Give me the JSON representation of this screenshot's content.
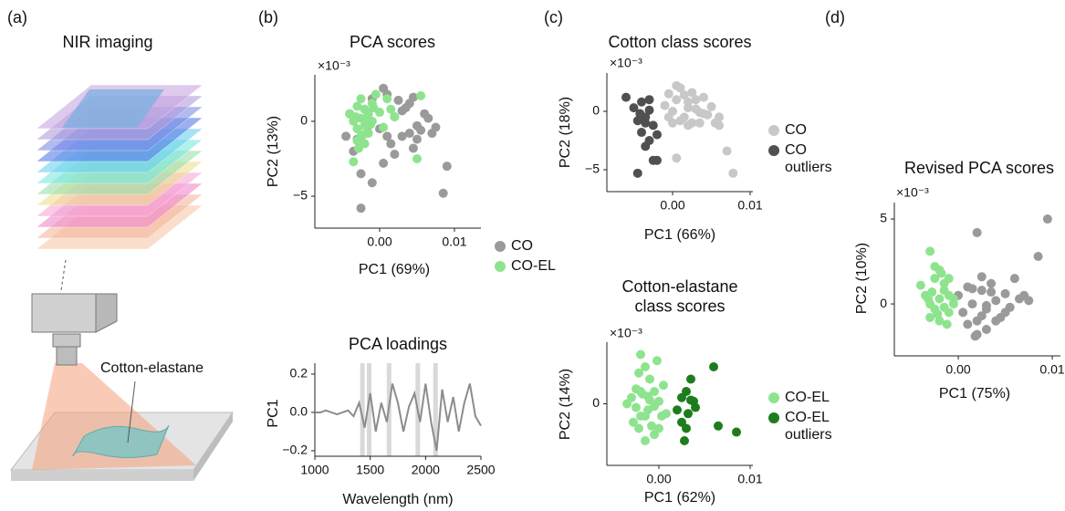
{
  "panel_labels": [
    "(a)",
    "(b)",
    "(c)",
    "(d)"
  ],
  "illustration": {
    "title": "NIR imaging",
    "label": "Cotton-elastane"
  },
  "chart_data": [
    {
      "type": "scatter",
      "title": "PCA scores",
      "y_multiplier": "×10⁻³",
      "x_label": "PC1 (69%)",
      "y_label": "PC2 (13%)",
      "xlim": [
        -0.00866,
        0.01354
      ],
      "xticks": [
        {
          "value": 0,
          "label": "0.00"
        },
        0.01
      ],
      "ylim": [
        -7.13,
        3.1
      ],
      "yticks": [
        {
          "value": -5,
          "label": "−5"
        },
        0
      ],
      "series": [
        {
          "name": "CO",
          "color": "#9a9a9a",
          "x": [
            -0.004,
            -0.003,
            -0.002,
            -0.001,
            0,
            0.001,
            0.002,
            0.003,
            0.004,
            0.005,
            0.006,
            0.007,
            -0.0035,
            -0.0025,
            0.0005,
            0.0015,
            0.0025,
            0.0035,
            0.0045,
            0.0055,
            0.0065,
            0.0005,
            -0.0015,
            0.001,
            0.003,
            0.005,
            0.0075,
            0.009,
            -0.0025,
            -0.001,
            0.002,
            0.004,
            -0.0045,
            0.0045,
            0.0085
          ],
          "values": [
            0.5,
            -1.2,
            0.8,
            1.5,
            -0.5,
            1.8,
            0.3,
            -1,
            1.2,
            -0.3,
            0.5,
            -0.8,
            -2,
            -3.5,
            -2.8,
            -1.5,
            1.4,
            0.9,
            -1.8,
            -0.6,
            0.2,
            2.2,
            -0.3,
            -1,
            0.7,
            -1.2,
            -0.4,
            -3,
            -5.8,
            -4.1,
            -2.2,
            -0.8,
            -1,
            1.6,
            -4.8
          ]
        },
        {
          "name": "CO-EL",
          "color": "#8ee48e",
          "x": [
            -0.004,
            -0.0035,
            -0.003,
            -0.003,
            -0.0025,
            -0.0025,
            -0.002,
            -0.002,
            -0.002,
            -0.0015,
            -0.0015,
            -0.001,
            -0.001,
            -0.0005,
            0,
            0.0005,
            0.001,
            -0.0035,
            -0.0028,
            -0.0022,
            -0.0018,
            -0.0012,
            -0.003,
            -0.0025,
            0.0015,
            0.002,
            0.005,
            0.0055,
            -0.0032,
            -0.0008
          ],
          "values": [
            0.5,
            0,
            -0.5,
            1,
            -1,
            0.2,
            0.8,
            -0.3,
            -1.5,
            0.5,
            -0.8,
            1.2,
            0,
            1.8,
            0.6,
            -0.4,
            1.5,
            -2.7,
            -1.8,
            -0.9,
            0.1,
            -0.2,
            -1.3,
            1.5,
            0.8,
            0.3,
            -2.5,
            1.7,
            0.3,
            0.9
          ]
        }
      ]
    },
    {
      "type": "line",
      "title": "PCA loadings",
      "x_label": "Wavelength (nm)",
      "y_label": "PC1",
      "xlim": [
        1000,
        2500
      ],
      "xticks": [
        1000,
        1500,
        2000,
        2500
      ],
      "ylim": [
        -0.229,
        0.257
      ],
      "yticks": [
        {
          "value": -0.2,
          "label": "−0.2"
        },
        {
          "value": 0,
          "label": "0.0"
        },
        0.2
      ],
      "highlights": [
        1430,
        1490,
        1670,
        1930,
        2090
      ],
      "x": [
        1000,
        1050,
        1100,
        1150,
        1200,
        1250,
        1300,
        1350,
        1400,
        1450,
        1500,
        1550,
        1600,
        1650,
        1700,
        1750,
        1800,
        1850,
        1900,
        1950,
        2000,
        2050,
        2100,
        2150,
        2200,
        2250,
        2300,
        2350,
        2400,
        2450,
        2500
      ],
      "series": [
        {
          "color": "#8c8c8c",
          "values": [
            0,
            0,
            0.01,
            0,
            -0.01,
            0,
            0.01,
            -0.02,
            0.05,
            -0.08,
            0.1,
            -0.1,
            0.05,
            -0.05,
            0.15,
            0.05,
            -0.1,
            0.03,
            0.1,
            -0.05,
            0.15,
            -0.05,
            -0.2,
            0.12,
            -0.05,
            0.08,
            -0.1,
            0.05,
            0.15,
            -0.02,
            -0.07
          ]
        }
      ]
    },
    {
      "type": "scatter",
      "title": "Cotton class scores",
      "y_multiplier": "×10⁻³",
      "x_label": "PC1 (66%)",
      "y_label": "PC2 (18%)",
      "xlim": [
        -0.00847,
        0.01035
      ],
      "xticks": [
        {
          "value": 0,
          "label": "0.00"
        },
        0.01
      ],
      "ylim": [
        -6.875,
        3.28
      ],
      "yticks": [
        {
          "value": -5,
          "label": "−5"
        },
        0
      ],
      "series": [
        {
          "name": "CO",
          "color": "#c8c8c8",
          "x": [
            -0.001,
            -0.0005,
            0,
            0.0005,
            0.001,
            0.0015,
            0.002,
            0.0025,
            0.003,
            0.0035,
            0.004,
            0.0045,
            0.005,
            0.0055,
            0.006,
            0,
            0.001,
            0.002,
            0.003,
            -0.0005,
            0.0015,
            0.0025,
            0.0005,
            0.004,
            0.006,
            0.007,
            0.0078,
            0.0005,
            0.0035,
            0.002
          ],
          "values": [
            0.5,
            1.5,
            0,
            1,
            2,
            -0.5,
            0.8,
            1.6,
            0.2,
            -1,
            1.2,
            -0.3,
            0.4,
            -1,
            -0.5,
            -1,
            -0.8,
            0.3,
            1,
            -0.5,
            1.4,
            -1,
            2.2,
            -0.2,
            -1.2,
            -3.4,
            -5.3,
            -4,
            -0.1,
            -1.2
          ]
        },
        {
          "name": "CO outliers",
          "color": "#505050",
          "x": [
            -0.006,
            -0.005,
            -0.0045,
            -0.004,
            -0.0035,
            -0.003,
            -0.0025,
            -0.002,
            -0.004,
            -0.0035,
            -0.003,
            -0.0045,
            -0.0025,
            -0.002,
            -0.003,
            -0.0035,
            -0.0042
          ],
          "values": [
            1.2,
            0.3,
            -0.8,
            0.8,
            -0.5,
            0.1,
            -1.2,
            -2,
            -1.8,
            -3,
            -2.5,
            -5.3,
            -4.2,
            -4.2,
            1,
            -1,
            -0.2
          ]
        }
      ]
    },
    {
      "type": "scatter",
      "title": "Cotton-elastane class scores",
      "y_multiplier": "×10⁻³",
      "x_label": "PC1 (62%)",
      "y_label": "PC2 (14%)",
      "xlim": [
        -0.0057,
        0.0103
      ],
      "xticks": [
        {
          "value": 0,
          "label": "0.00"
        },
        0.01
      ],
      "ylim": [
        -5,
        5
      ],
      "yticks": [
        0
      ],
      "series": [
        {
          "name": "CO-EL",
          "color": "#8ee48e",
          "x": [
            -0.003,
            -0.0025,
            -0.002,
            -0.0015,
            -0.001,
            -0.0005,
            0,
            0.0005,
            -0.0028,
            -0.0022,
            -0.0018,
            -0.0012,
            -0.0008,
            -0.0002,
            0.0003,
            -0.0025,
            -0.0015,
            -0.0005,
            -0.002,
            -0.001,
            0,
            -0.0035,
            -0.0015,
            -0.0005,
            -0.002,
            -0.0012,
            0.0008,
            -0.0022
          ],
          "values": [
            0.5,
            -0.3,
            1,
            -1,
            2,
            -2.5,
            0.2,
            1.5,
            -1.5,
            2.5,
            0.8,
            -0.5,
            -1.8,
            3.5,
            -1,
            1.2,
            3,
            -0.2,
            -1,
            0.3,
            -2,
            0,
            -3,
            1,
            4,
            0.6,
            -0.8,
            -2
          ]
        },
        {
          "name": "CO-EL outliers",
          "color": "#1d7d1d",
          "x": [
            0.002,
            0.0025,
            0.003,
            0.0035,
            0.003,
            0.0025,
            0.0028,
            0.0035,
            0.0032,
            0.006,
            0.0065,
            0.0085,
            0.004,
            0.0038
          ],
          "values": [
            -0.5,
            -1.5,
            1,
            0.3,
            -2,
            0.5,
            -3,
            2,
            -0.8,
            3,
            -1.8,
            -2.3,
            -0.3,
            0.2
          ]
        }
      ]
    },
    {
      "type": "scatter",
      "title": "Revised PCA scores",
      "y_multiplier": "×10⁻³",
      "x_label": "PC1 (75%)",
      "y_label": "PC2 (10%)",
      "xlim": [
        -0.0068,
        0.01087
      ],
      "xticks": [
        {
          "value": 0,
          "label": "0.00"
        },
        0.01
      ],
      "ylim": [
        -3.06,
        5.97
      ],
      "yticks": [
        0,
        5
      ],
      "series": [
        {
          "color": "#9a9a9a",
          "x": [
            0,
            0.0005,
            0.001,
            0.0015,
            0.002,
            0.0025,
            0.003,
            0.0035,
            0.004,
            0.0045,
            0.005,
            0.0055,
            0.006,
            0.0065,
            0.007,
            0.001,
            0.002,
            0.003,
            0.004,
            0.005,
            0.0015,
            0.0025,
            0.0035,
            0.0018,
            0.0025,
            0.002,
            0.0095,
            0.0085,
            0.0075,
            0.003
          ],
          "values": [
            0.5,
            -0.5,
            1,
            0,
            -1,
            0.8,
            -0.3,
            1.2,
            0.2,
            -0.8,
            0.6,
            -0.2,
            1.5,
            0.3,
            0.5,
            -1.2,
            -1.8,
            -1.5,
            -1,
            -0.5,
            0.9,
            -0.7,
            0.7,
            -1.9,
            1.6,
            4.2,
            5,
            2.8,
            0.2,
            -0.1
          ]
        },
        {
          "color": "#8ee48e",
          "x": [
            -0.004,
            -0.0035,
            -0.003,
            -0.0025,
            -0.002,
            -0.0015,
            -0.001,
            -0.0005,
            -0.003,
            -0.0025,
            -0.002,
            -0.0015,
            -0.001,
            -0.003,
            -0.002,
            -0.0025,
            -0.0015,
            -0.001,
            -0.0028,
            -0.0022,
            -0.0032,
            -0.0018,
            -0.0012,
            -0.0005
          ],
          "values": [
            1.1,
            0.5,
            0,
            1.5,
            2,
            0.8,
            -0.5,
            0.3,
            3.1,
            -0.3,
            -1,
            1.2,
            0.5,
            -0.8,
            0.3,
            2.2,
            -0.2,
            1.5,
            0.7,
            -0.6,
            0.3,
            1.8,
            -1.2,
            0
          ]
        }
      ]
    }
  ]
}
